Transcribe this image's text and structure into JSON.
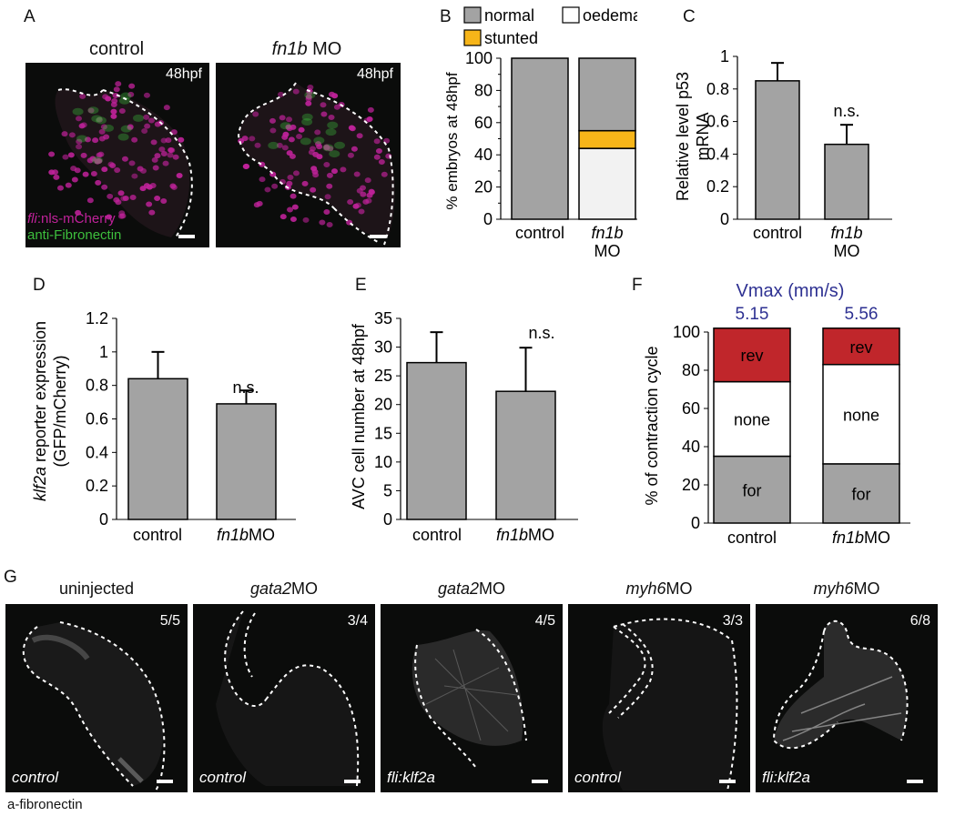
{
  "panel_letters": {
    "a": "A",
    "b": "B",
    "c": "C",
    "d": "D",
    "e": "E",
    "f": "F",
    "g": "G"
  },
  "panel_a": {
    "titles": {
      "control": "control",
      "mo_italic": "fn1b",
      "mo_suffix": " MO"
    },
    "stage": "48hpf",
    "legend_italic": "fli",
    "legend_rest": ":nls-mCherry",
    "legend_green": "anti-Fibronectin",
    "colors": {
      "nuclei": "#c0229a",
      "fibronectin": "#3dbf3d"
    }
  },
  "chart_data": [
    {
      "panel": "B",
      "type": "bar",
      "stacked": true,
      "categories": [
        "control",
        "fn1b MO"
      ],
      "series": [
        {
          "name": "oedema",
          "values": [
            0,
            44
          ],
          "color": "#f2f2f2"
        },
        {
          "name": "stunted",
          "values": [
            0,
            11
          ],
          "color": "#f7b519"
        },
        {
          "name": "normal",
          "values": [
            100,
            45
          ],
          "color": "#a3a3a3"
        }
      ],
      "ylabel": "% embryos at 48hpf",
      "ylim": [
        0,
        100
      ],
      "yticks": [
        "0",
        "20",
        "40",
        "60",
        "80",
        "100"
      ],
      "legend": {
        "normal": "normal",
        "oedema": "oedema",
        "stunted": "stunted"
      },
      "xlabels": {
        "control": "control",
        "mo_italic": "fn1b",
        "mo_line2": "MO"
      }
    },
    {
      "panel": "C",
      "type": "bar",
      "categories": [
        "control",
        "fn1b MO"
      ],
      "values": [
        0.85,
        0.46
      ],
      "errors": [
        0.11,
        0.12
      ],
      "ylabel_line1": "Relative level p53",
      "ylabel_line2": "mRNA",
      "ylim": [
        0,
        1
      ],
      "yticks": [
        "0",
        "0.2",
        "0.4",
        "0.6",
        "0.8",
        "1"
      ],
      "annotation": "n.s.",
      "xlabels": {
        "control": "control",
        "mo_italic": "fn1b",
        "mo_line2": "MO"
      }
    },
    {
      "panel": "D",
      "type": "bar",
      "categories": [
        "control",
        "fn1bMO"
      ],
      "values": [
        0.84,
        0.69
      ],
      "errors": [
        0.16,
        0.08
      ],
      "ylabel_italic": "klf2a",
      "ylabel_rest": " reporter expression",
      "ylabel_line2": "(GFP/mCherry)",
      "ylim": [
        0,
        1.2
      ],
      "yticks": [
        "0",
        "0.2",
        "0.4",
        "0.6",
        "0.8",
        "1",
        "1.2"
      ],
      "annotation": "n.s.",
      "xlabels": {
        "control": "control",
        "mo_italic": "fn1b",
        "mo_rest": "MO"
      }
    },
    {
      "panel": "E",
      "type": "bar",
      "categories": [
        "control",
        "fn1bMO"
      ],
      "values": [
        27.3,
        22.3
      ],
      "errors": [
        5.3,
        7.6
      ],
      "ylabel": "AVC cell number at 48hpf",
      "ylim": [
        0,
        35
      ],
      "yticks": [
        "0",
        "5",
        "10",
        "15",
        "20",
        "25",
        "30",
        "35"
      ],
      "annotation": "n.s.",
      "xlabels": {
        "control": "control",
        "mo_italic": "fn1b",
        "mo_rest": "MO"
      }
    },
    {
      "panel": "F",
      "type": "bar",
      "stacked": true,
      "categories": [
        "control",
        "fn1bMO"
      ],
      "series": [
        {
          "name": "for",
          "values": [
            35,
            31
          ],
          "color": "#a3a3a3"
        },
        {
          "name": "none",
          "values": [
            39,
            52
          ],
          "color": "#ffffff"
        },
        {
          "name": "rev",
          "values": [
            28,
            19
          ],
          "color": "#c0262b"
        }
      ],
      "ylabel": "% of contraction cycle",
      "ylim": [
        0,
        100
      ],
      "yticks": [
        "0",
        "20",
        "40",
        "60",
        "80",
        "100"
      ],
      "vmax_title": "Vmax (mm/s)",
      "vmax_values": [
        "5.15",
        "5.56"
      ],
      "vmax_color": "#2e3192",
      "xlabels": {
        "control": "control",
        "mo_italic": "fn1b",
        "mo_rest": "MO"
      }
    }
  ],
  "panel_g": {
    "images": [
      {
        "title_italic": "",
        "title_rest": "uninjected",
        "count": "5/5",
        "label": "control"
      },
      {
        "title_italic": "gata2",
        "title_rest": "MO",
        "count": "3/4",
        "label": "control"
      },
      {
        "title_italic": "gata2",
        "title_rest": "MO",
        "count": "4/5",
        "label": "fli:klf2a"
      },
      {
        "title_italic": "myh6",
        "title_rest": "MO",
        "count": "3/3",
        "label": "control"
      },
      {
        "title_italic": "myh6",
        "title_rest": "MO",
        "count": "6/8",
        "label": "fli:klf2a"
      }
    ],
    "footer": "a-fibronectin"
  }
}
